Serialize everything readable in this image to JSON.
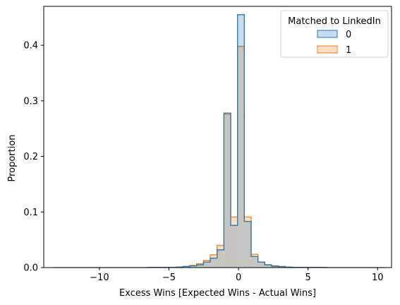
{
  "chart_data": {
    "type": "histogram",
    "xlabel": "Excess Wins [Expected Wins - Actual Wins]",
    "ylabel": "Proportion",
    "xlim": [
      -14,
      11
    ],
    "ylim": [
      0,
      0.47
    ],
    "xticks": [
      -10,
      -5,
      0,
      5,
      10
    ],
    "yticks": [
      0.0,
      0.1,
      0.2,
      0.3,
      0.4
    ],
    "ytick_labels": [
      "0.0",
      "0.1",
      "0.2",
      "0.3",
      "0.4"
    ],
    "bin_width": 0.49,
    "legend": {
      "title": "Matched to LinkedIn",
      "position": "top-right"
    },
    "series": [
      {
        "name": "0",
        "color": "#1f77b4",
        "bins": [
          {
            "x0": -13.3,
            "x1": -6.5,
            "value": 0.0
          },
          {
            "x0": -6.5,
            "x1": -4.48,
            "value": 0.0005
          },
          {
            "x0": -4.48,
            "x1": -3.99,
            "value": 0.001
          },
          {
            "x0": -3.99,
            "x1": -3.5,
            "value": 0.002
          },
          {
            "x0": -3.5,
            "x1": -3.01,
            "value": 0.003
          },
          {
            "x0": -3.01,
            "x1": -2.52,
            "value": 0.005
          },
          {
            "x0": -2.52,
            "x1": -2.03,
            "value": 0.01
          },
          {
            "x0": -2.03,
            "x1": -1.54,
            "value": 0.017
          },
          {
            "x0": -1.54,
            "x1": -1.05,
            "value": 0.032
          },
          {
            "x0": -1.05,
            "x1": -0.56,
            "value": 0.278
          },
          {
            "x0": -0.56,
            "x1": -0.07,
            "value": 0.076
          },
          {
            "x0": -0.07,
            "x1": 0.42,
            "value": 0.455
          },
          {
            "x0": 0.42,
            "x1": 0.91,
            "value": 0.083
          },
          {
            "x0": 0.91,
            "x1": 1.4,
            "value": 0.02
          },
          {
            "x0": 1.4,
            "x1": 1.89,
            "value": 0.01
          },
          {
            "x0": 1.89,
            "x1": 2.38,
            "value": 0.005
          },
          {
            "x0": 2.38,
            "x1": 2.87,
            "value": 0.003
          },
          {
            "x0": 2.87,
            "x1": 3.36,
            "value": 0.002
          },
          {
            "x0": 3.36,
            "x1": 3.85,
            "value": 0.001
          },
          {
            "x0": 3.85,
            "x1": 6.3,
            "value": 0.0005
          },
          {
            "x0": 6.3,
            "x1": 10.5,
            "value": 0.0
          }
        ]
      },
      {
        "name": "1",
        "color": "#ff7f0e",
        "bins": [
          {
            "x0": -6.5,
            "x1": -4.48,
            "value": 0.0005
          },
          {
            "x0": -4.48,
            "x1": -3.99,
            "value": 0.001
          },
          {
            "x0": -3.99,
            "x1": -3.5,
            "value": 0.002
          },
          {
            "x0": -3.5,
            "x1": -3.01,
            "value": 0.004
          },
          {
            "x0": -3.01,
            "x1": -2.52,
            "value": 0.007
          },
          {
            "x0": -2.52,
            "x1": -2.03,
            "value": 0.013
          },
          {
            "x0": -2.03,
            "x1": -1.54,
            "value": 0.023
          },
          {
            "x0": -1.54,
            "x1": -1.05,
            "value": 0.04
          },
          {
            "x0": -1.05,
            "x1": -0.56,
            "value": 0.276
          },
          {
            "x0": -0.56,
            "x1": -0.07,
            "value": 0.091
          },
          {
            "x0": -0.07,
            "x1": 0.42,
            "value": 0.398
          },
          {
            "x0": 0.42,
            "x1": 0.91,
            "value": 0.091
          },
          {
            "x0": 0.91,
            "x1": 1.4,
            "value": 0.024
          },
          {
            "x0": 1.4,
            "x1": 1.89,
            "value": 0.01
          },
          {
            "x0": 1.89,
            "x1": 2.38,
            "value": 0.005
          },
          {
            "x0": 2.38,
            "x1": 2.87,
            "value": 0.002
          },
          {
            "x0": 2.87,
            "x1": 3.36,
            "value": 0.001
          },
          {
            "x0": 3.36,
            "x1": 4.9,
            "value": 0.0005
          }
        ]
      }
    ]
  }
}
